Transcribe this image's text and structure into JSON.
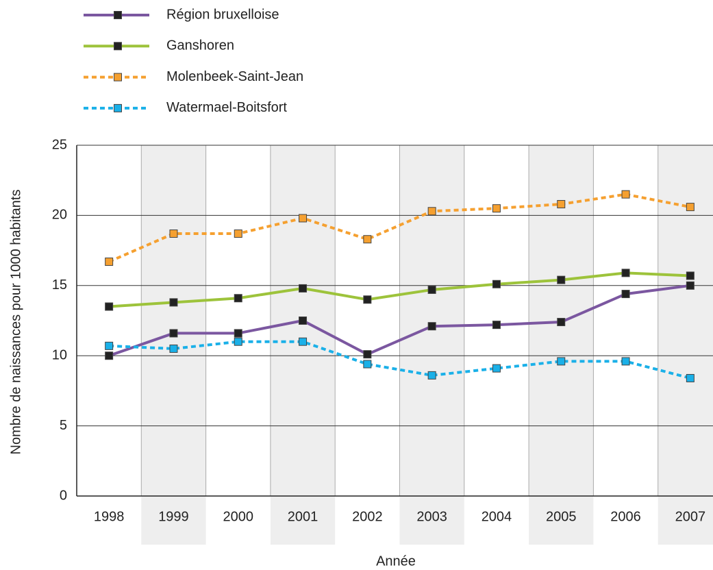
{
  "chart_data": {
    "type": "line",
    "x_label": "Année",
    "y_label": "Nombre de naissances pour 1000 habitants",
    "categories": [
      "1998",
      "1999",
      "2000",
      "2001",
      "2002",
      "2003",
      "2004",
      "2005",
      "2006",
      "2007"
    ],
    "series": [
      {
        "name": "Région bruxelloise",
        "color": "#7b57a0",
        "marker_color": "#222222",
        "dashed": false,
        "values": [
          10.0,
          11.6,
          11.6,
          12.5,
          10.1,
          12.1,
          12.2,
          12.4,
          14.4,
          15.0
        ]
      },
      {
        "name": "Ganshoren",
        "color": "#9dc33b",
        "marker_color": "#222222",
        "dashed": false,
        "values": [
          13.5,
          13.8,
          14.1,
          14.8,
          14.0,
          14.7,
          15.1,
          15.4,
          15.9,
          15.7
        ]
      },
      {
        "name": "Molenbeek-Saint-Jean",
        "color": "#f5a030",
        "marker_color": "#f5a030",
        "dashed": true,
        "values": [
          16.7,
          18.7,
          18.7,
          19.8,
          18.3,
          20.3,
          20.5,
          20.8,
          21.5,
          20.6
        ]
      },
      {
        "name": "Watermael-Boitsfort",
        "color": "#1ab0e8",
        "marker_color": "#1ab0e8",
        "dashed": true,
        "values": [
          10.7,
          10.5,
          11.0,
          11.0,
          9.4,
          8.6,
          9.1,
          9.6,
          9.6,
          8.4
        ]
      }
    ],
    "ylim": [
      0,
      25
    ],
    "yticks": [
      0,
      5,
      10,
      15,
      20,
      25
    ],
    "grid": true,
    "legend": "top-left"
  }
}
